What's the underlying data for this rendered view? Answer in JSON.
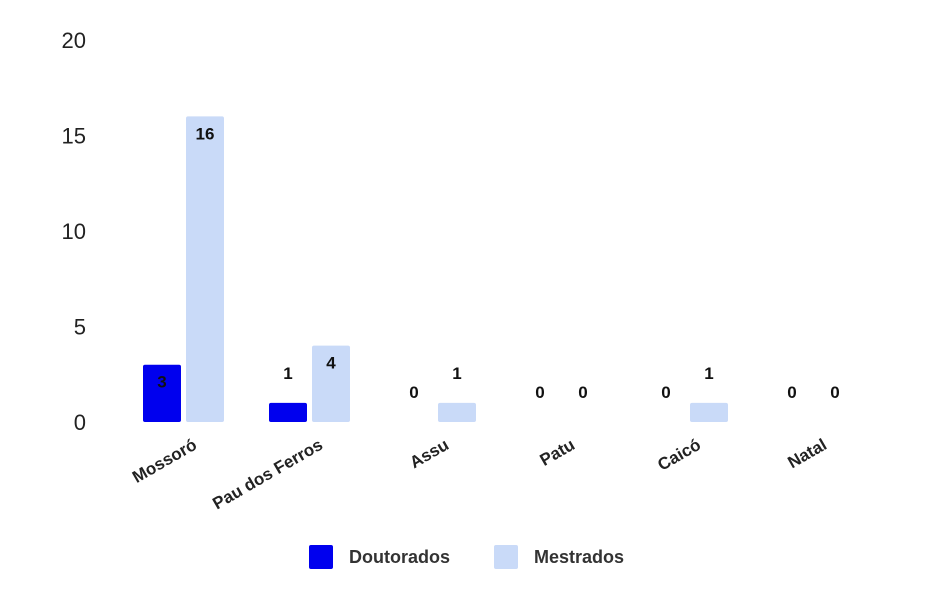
{
  "chart_data": {
    "type": "bar",
    "categories": [
      "Mossoró",
      "Pau dos Ferros",
      "Assu",
      "Patu",
      "Caicó",
      "Natal"
    ],
    "series": [
      {
        "name": "Doutorados",
        "values": [
          3,
          1,
          0,
          0,
          0,
          0
        ],
        "color": "#0000ee"
      },
      {
        "name": "Mestrados",
        "values": [
          16,
          4,
          1,
          0,
          1,
          0
        ],
        "color": "#c9daf8"
      }
    ],
    "y_ticks": [
      "0",
      "5",
      "10",
      "15",
      "20"
    ],
    "ylim": [
      0,
      20
    ],
    "grid": false,
    "legend_position": "bottom"
  }
}
